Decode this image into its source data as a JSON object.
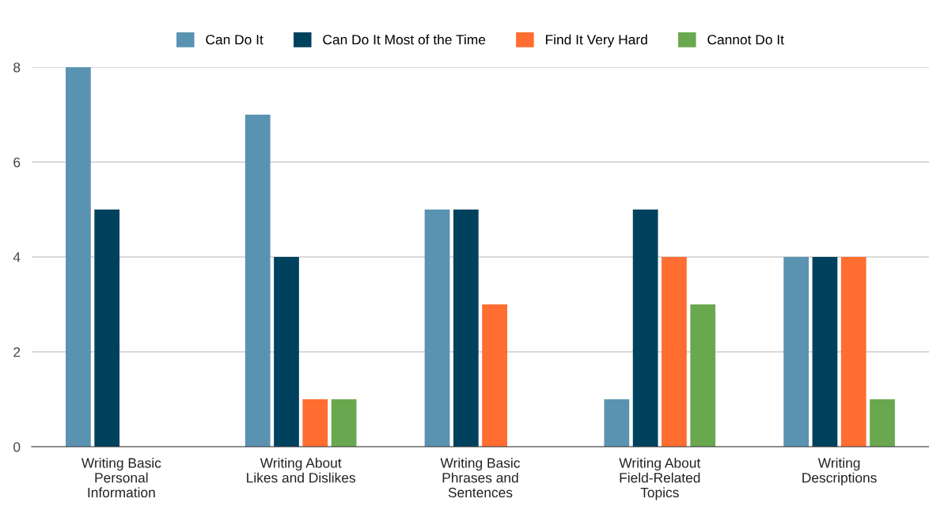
{
  "chart_data": {
    "type": "bar",
    "categories": [
      "Writing Basic Personal Information",
      "Writing About Likes and Dislikes",
      "Writing Basic Phrases and Sentences",
      "Writing About Field-Related Topics",
      "Writing Descriptions"
    ],
    "series": [
      {
        "name": "Can Do It",
        "color": "#5a93b1",
        "values": [
          8,
          7,
          5,
          1,
          4
        ]
      },
      {
        "name": "Can Do It Most of the Time",
        "color": "#00425e",
        "values": [
          5,
          4,
          5,
          5,
          4
        ]
      },
      {
        "name": "Find It Very Hard",
        "color": "#ff6d31",
        "values": [
          0,
          1,
          3,
          4,
          4
        ]
      },
      {
        "name": "Cannot Do It",
        "color": "#6aa84f",
        "values": [
          0,
          1,
          0,
          3,
          1
        ]
      }
    ],
    "ylim": [
      0,
      8
    ],
    "yticks": [
      0,
      2,
      4,
      6,
      8
    ],
    "grid": "y",
    "legend": "top"
  }
}
